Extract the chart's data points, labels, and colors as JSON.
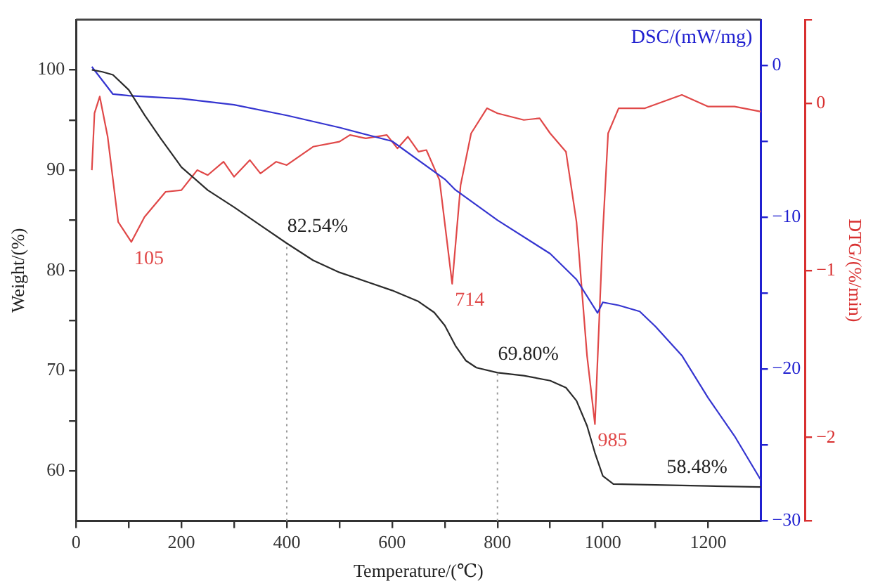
{
  "chart_data": {
    "type": "line",
    "xlabel": "Temperature/(℃)",
    "ylabel": "Weight/(%)",
    "y2label": "DSC/(mW/mg)",
    "y3label": "DTG/(%/min)",
    "xlim": [
      0,
      1300
    ],
    "xticks": [
      0,
      {
        "value": 100,
        "label": null
      },
      200,
      {
        "value": 300,
        "label": null
      },
      400,
      {
        "value": 500,
        "label": null
      },
      600,
      {
        "value": 700,
        "label": null
      },
      800,
      {
        "value": 900,
        "label": null
      },
      1000,
      {
        "value": 1100,
        "label": null
      },
      1200
    ],
    "ylim": [
      55,
      105
    ],
    "yticks": [
      60,
      {
        "value": 65,
        "label": null
      },
      70,
      {
        "value": 75,
        "label": null
      },
      80,
      {
        "value": 85,
        "label": null
      },
      90,
      {
        "value": 95,
        "label": null
      },
      100
    ],
    "y2lim": [
      -30,
      3
    ],
    "y2ticks": [
      -30,
      {
        "value": -25,
        "label": null
      },
      -20,
      {
        "value": -15,
        "label": null
      },
      -10,
      {
        "value": -5,
        "label": null
      },
      0
    ],
    "y3lim": [
      -2.5,
      0.5
    ],
    "y3ticks": [
      {
        "value": -2.5,
        "label": null
      },
      -2,
      -1,
      0,
      {
        "value": 0.5,
        "label": null
      }
    ],
    "grid": false,
    "legend": false,
    "marker": "none",
    "line_style": "solid",
    "series": [
      {
        "color": "#2b2b2b",
        "x": [
          30,
          50,
          70,
          100,
          130,
          160,
          200,
          250,
          300,
          350,
          400,
          450,
          500,
          550,
          600,
          650,
          680,
          700,
          720,
          740,
          760,
          800,
          850,
          900,
          930,
          950,
          970,
          985,
          1000,
          1020,
          1100,
          1200,
          1300
        ],
        "values": [
          100,
          99.8,
          99.5,
          98.0,
          95.5,
          93.2,
          90.3,
          88.0,
          86.3,
          84.5,
          82.7,
          81.0,
          79.8,
          78.9,
          78.0,
          76.9,
          75.8,
          74.5,
          72.5,
          71.0,
          70.3,
          69.8,
          69.5,
          69.0,
          68.3,
          67.0,
          64.5,
          61.8,
          59.5,
          58.7,
          58.6,
          58.5,
          58.4
        ]
      },
      {
        "color": "#3535d0",
        "axis": "y2",
        "x": [
          30,
          50,
          70,
          100,
          200,
          300,
          400,
          500,
          600,
          700,
          720,
          800,
          900,
          950,
          990,
          1000,
          1030,
          1070,
          1100,
          1150,
          1200,
          1250,
          1300
        ],
        "values": [
          -0.1,
          -1.0,
          -1.9,
          -2.0,
          -2.2,
          -2.6,
          -3.3,
          -4.1,
          -5.0,
          -7.5,
          -8.2,
          -10.2,
          -12.4,
          -14.1,
          -16.3,
          -15.6,
          -15.8,
          -16.2,
          -17.2,
          -19.1,
          -21.9,
          -24.4,
          -27.3
        ]
      },
      {
        "color": "#e04848",
        "axis": "y3",
        "x": [
          30,
          35,
          45,
          60,
          80,
          105,
          130,
          170,
          200,
          230,
          250,
          280,
          300,
          330,
          350,
          380,
          400,
          450,
          500,
          520,
          550,
          590,
          610,
          630,
          650,
          665,
          690,
          714,
          730,
          750,
          780,
          800,
          850,
          880,
          900,
          930,
          950,
          970,
          985,
          1000,
          1010,
          1030,
          1080,
          1150,
          1200,
          1250,
          1300
        ],
        "values": [
          -0.4,
          -0.06,
          0.04,
          -0.2,
          -0.71,
          -0.83,
          -0.68,
          -0.53,
          -0.52,
          -0.4,
          -0.43,
          -0.35,
          -0.44,
          -0.34,
          -0.42,
          -0.35,
          -0.37,
          -0.26,
          -0.23,
          -0.19,
          -0.21,
          -0.19,
          -0.27,
          -0.2,
          -0.29,
          -0.28,
          -0.46,
          -1.08,
          -0.49,
          -0.18,
          -0.03,
          -0.06,
          -0.1,
          -0.09,
          -0.18,
          -0.29,
          -0.71,
          -1.51,
          -1.92,
          -0.77,
          -0.18,
          -0.03,
          -0.03,
          0.05,
          -0.02,
          -0.02,
          -0.05
        ]
      }
    ],
    "ref_lines": [
      {
        "axis": "x",
        "value": 400,
        "line_style": "dotted",
        "color": "#9a9a9a"
      },
      {
        "axis": "x",
        "value": 800,
        "line_style": "dotted",
        "color": "#9a9a9a"
      }
    ],
    "annotations": [
      {
        "text": "82.54%",
        "x": 400,
        "y": 82.54
      },
      {
        "text": "69.80%",
        "x": 800,
        "y": 69.8
      },
      {
        "text": "58.48%",
        "x": 1120,
        "y": 58.48
      },
      "105",
      "714",
      "985"
    ]
  }
}
